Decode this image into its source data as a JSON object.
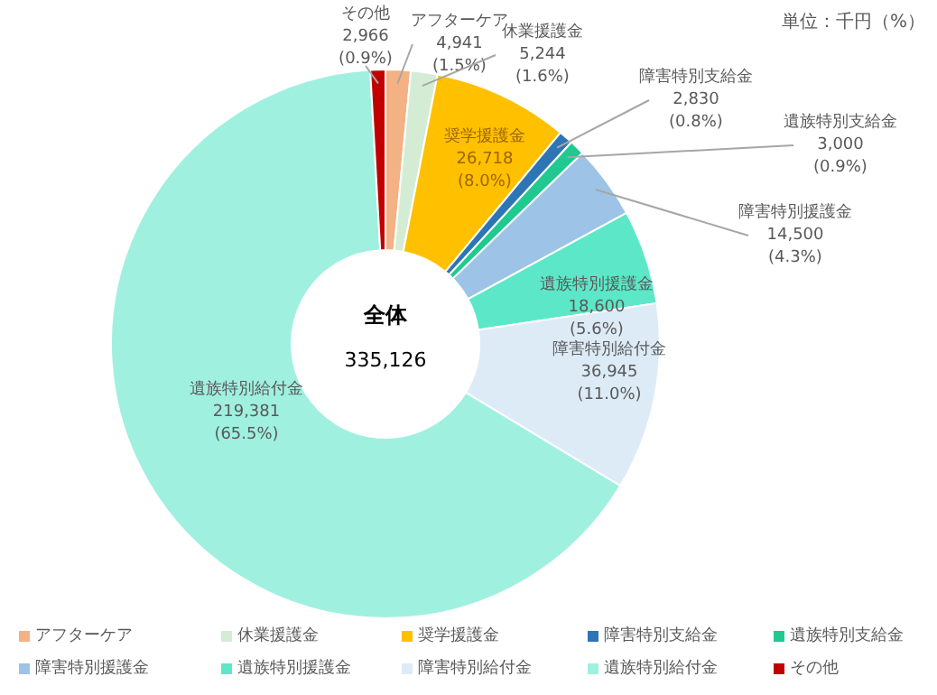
{
  "chart_data": {
    "type": "donut",
    "categories": [
      "アフターケア",
      "休業援護金",
      "奨学援護金",
      "障害特別支給金",
      "遺族特別支給金",
      "障害特別援護金",
      "遺族特別援護金",
      "障害特別給付金",
      "遺族特別給付金",
      "その他"
    ],
    "values": [
      4941,
      5244,
      26718,
      2830,
      3000,
      14500,
      18600,
      36945,
      219381,
      2966
    ],
    "value_labels": [
      "4,941\n(1.5%)",
      "5,244\n(1.6%)",
      "26,718\n(8.0%)",
      "2,830\n(0.8%)",
      "3,000\n(0.9%)",
      "14,500\n(4.3%)",
      "18,600\n(5.6%)",
      "36,945\n(11.0%)",
      "219,381\n(65.5%)",
      "2,966\n(0.9%)"
    ],
    "colors": [
      "#f4b183",
      "#d5ecd4",
      "#ffc000",
      "#2e75b6",
      "#1fc990",
      "#9dc3e6",
      "#5ce8c8",
      "#ddebf7",
      "#a0f0e0",
      "#c00000"
    ],
    "annotations": [
      "全体",
      "335,126",
      "単位：千円（%）"
    ],
    "legend": "bottom"
  }
}
